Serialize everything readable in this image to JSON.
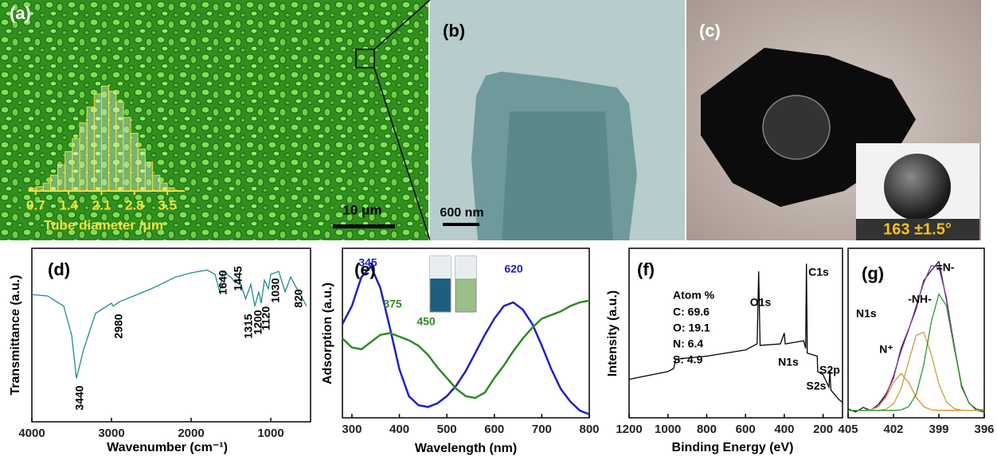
{
  "figure": {
    "panels": [
      "(a)",
      "(b)",
      "(c)"
    ],
    "scale_bars": [
      "10 μm",
      "600 nm"
    ],
    "contact_angle": "163 ±1.5°"
  },
  "chart_data": [
    {
      "type": "histogram",
      "xlabel": "Tube diameter /μm",
      "color": "#f2e03a",
      "bins": [
        0.55,
        0.705,
        0.86,
        1.015,
        1.17,
        1.325,
        1.48,
        1.635,
        1.79,
        1.945,
        2.1,
        2.255,
        2.41,
        2.565,
        2.72,
        2.875,
        3.03,
        3.185,
        3.34,
        3.495,
        3.65
      ],
      "values": [
        0.5,
        0.8,
        1.5,
        3,
        5,
        7.5,
        10,
        13,
        16,
        18.5,
        20,
        19,
        17,
        14,
        11,
        8,
        5.5,
        3,
        1.5,
        0.6
      ],
      "xlim": [
        0.55,
        3.65
      ],
      "ylim": [
        0,
        22
      ],
      "xticks": [
        0.7,
        1.4,
        2.1,
        2.8,
        3.5
      ]
    },
    {
      "type": "line",
      "label": "(d)",
      "xlabel": "Wavenumber (cm⁻¹)",
      "ylabel": "Transmittance (a.u.)",
      "x": [
        4000,
        3800,
        3600,
        3500,
        3440,
        3350,
        3200,
        3000,
        2980,
        2900,
        2500,
        2200,
        2000,
        1800,
        1700,
        1640,
        1600,
        1500,
        1445,
        1400,
        1315,
        1250,
        1200,
        1150,
        1120,
        1080,
        1030,
        1000,
        900,
        820,
        750,
        650,
        550
      ],
      "series": [
        {
          "color": "#1f8a8f",
          "values": [
            68,
            67,
            60,
            40,
            10,
            30,
            55,
            62,
            60,
            63,
            72,
            80,
            83,
            85,
            82,
            70,
            84,
            80,
            76,
            79,
            65,
            75,
            60,
            70,
            62,
            78,
            72,
            82,
            84,
            70,
            80,
            70,
            60
          ]
        }
      ],
      "xlim": [
        4000,
        500
      ],
      "ylim": [
        -20,
        100
      ],
      "xticks": [
        4000,
        3000,
        2000,
        1000
      ],
      "annotations": [
        "3440",
        "2980",
        "1640",
        "1445",
        "1315",
        "1200",
        "1120",
        "1030",
        "820"
      ]
    },
    {
      "type": "line",
      "label": "(e)",
      "xlabel": "Wavelength (nm)",
      "ylabel": "Adsorption (a.u.)",
      "x": [
        280,
        300,
        320,
        340,
        360,
        380,
        400,
        420,
        440,
        460,
        480,
        500,
        520,
        540,
        560,
        580,
        600,
        620,
        640,
        660,
        680,
        700,
        720,
        740,
        760,
        780,
        800
      ],
      "series": [
        {
          "color": "#2020c0",
          "values": [
            0.5,
            0.6,
            0.76,
            0.82,
            0.7,
            0.48,
            0.25,
            0.1,
            0.05,
            0.04,
            0.06,
            0.1,
            0.16,
            0.24,
            0.34,
            0.44,
            0.53,
            0.6,
            0.62,
            0.58,
            0.5,
            0.38,
            0.25,
            0.14,
            0.07,
            0.02,
            0
          ]
        },
        {
          "color": "#2e8b22",
          "values": [
            0.42,
            0.37,
            0.36,
            0.4,
            0.44,
            0.45,
            0.43,
            0.41,
            0.38,
            0.33,
            0.26,
            0.2,
            0.14,
            0.1,
            0.09,
            0.12,
            0.2,
            0.27,
            0.35,
            0.42,
            0.48,
            0.53,
            0.55,
            0.57,
            0.6,
            0.62,
            0.63
          ]
        }
      ],
      "xlim": [
        280,
        800
      ],
      "ylim": [
        -0.02,
        0.92
      ],
      "xticks": [
        300,
        400,
        500,
        600,
        700,
        800
      ],
      "annotations": [
        {
          "text": "345",
          "color": "#2020c0"
        },
        {
          "text": "375",
          "color": "#2e8b22"
        },
        {
          "text": "450",
          "color": "#2e8b22"
        },
        {
          "text": "620",
          "color": "#2020c0"
        }
      ]
    },
    {
      "type": "line",
      "label": "(f)",
      "xlabel": "Binding Energy (eV)",
      "ylabel": "Intensity (a.u.)",
      "x": [
        1200,
        1000,
        970,
        960,
        800,
        600,
        540,
        532,
        525,
        420,
        400,
        395,
        300,
        290,
        286,
        282,
        230,
        228,
        200,
        170,
        165,
        160,
        120,
        100
      ],
      "series": [
        {
          "color": "#000000",
          "values": [
            0.25,
            0.3,
            0.32,
            0.38,
            0.4,
            0.44,
            0.48,
            0.95,
            0.47,
            0.48,
            0.55,
            0.48,
            0.5,
            0.45,
            1.0,
            0.42,
            0.4,
            0.3,
            0.28,
            0.2,
            0.3,
            0.18,
            0.12,
            0.1
          ]
        }
      ],
      "xlim": [
        1200,
        100
      ],
      "ylim": [
        0,
        1.1
      ],
      "xticks": [
        1200,
        1000,
        800,
        600,
        400,
        200
      ],
      "annotations": [
        "Atom %",
        "C: 69.6",
        "O: 19.1",
        "N: 6.4",
        "S: 4.9",
        "O1s",
        "N1s",
        "C1s",
        "S2s",
        "S2p"
      ]
    },
    {
      "type": "line",
      "label": "(g)",
      "x": [
        405,
        404.5,
        404,
        403.5,
        403,
        402.5,
        402,
        401.5,
        401,
        400.5,
        400,
        399.5,
        399,
        398.5,
        398,
        397.5,
        397,
        396.5,
        396
      ],
      "series": [
        {
          "color": "#1a1a3a",
          "values": [
            0.06,
            0.04,
            0.07,
            0.05,
            0.09,
            0.16,
            0.27,
            0.47,
            0.6,
            0.74,
            0.93,
            1.0,
            1.06,
            0.8,
            0.5,
            0.21,
            0.1,
            0.05,
            0.04
          ]
        },
        {
          "color": "#8a3aa8",
          "values": [
            0.05,
            0.05,
            0.05,
            0.054,
            0.076,
            0.149,
            0.284,
            0.451,
            0.595,
            0.758,
            0.915,
            1.034,
            1.02,
            0.817,
            0.493,
            0.222,
            0.098,
            0.059,
            0.051
          ]
        },
        {
          "color": "#e08a30",
          "values": [
            0.05,
            0.05,
            0.05,
            0.054,
            0.075,
            0.14,
            0.24,
            0.3,
            0.24,
            0.14,
            0.075,
            0.054,
            0.05,
            0.05,
            0.05,
            0.05,
            0.05,
            0.05,
            0.05
          ]
        },
        {
          "color": "#c8a040",
          "values": [
            0.05,
            0.05,
            0.05,
            0.05,
            0.051,
            0.059,
            0.094,
            0.197,
            0.38,
            0.56,
            0.58,
            0.43,
            0.23,
            0.107,
            0.063,
            0.052,
            0.05,
            0.05,
            0.05
          ]
        },
        {
          "color": "#2e9a2e",
          "values": [
            0.05,
            0.05,
            0.05,
            0.05,
            0.05,
            0.05,
            0.05,
            0.054,
            0.075,
            0.158,
            0.36,
            0.65,
            0.84,
            0.76,
            0.48,
            0.22,
            0.098,
            0.059,
            0.051
          ]
        }
      ],
      "xlim": [
        405,
        396
      ],
      "ylim": [
        0,
        1.15
      ],
      "xticks": [
        405,
        402,
        399,
        396
      ],
      "annotations": [
        "N1s",
        "N⁺",
        "-NH-",
        "=N-"
      ]
    }
  ]
}
